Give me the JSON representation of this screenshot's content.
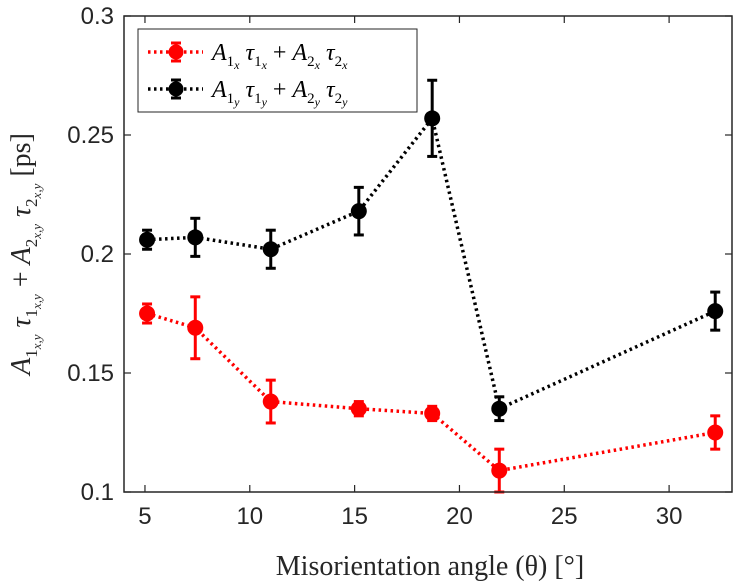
{
  "chart_data": {
    "type": "line",
    "title": "",
    "xlabel": "Misorientation angle (θ) [°]",
    "ylabel": "A_{1x,y} τ_{1x,y} + A_{2x,y} τ_{2x,y} [ps]",
    "xlim": [
      4,
      33
    ],
    "ylim": [
      0.1,
      0.3
    ],
    "xticks": [
      5,
      10,
      15,
      20,
      25,
      30
    ],
    "yticks": [
      0.1,
      0.15,
      0.2,
      0.25,
      0.3
    ],
    "xtick_labels": [
      "5",
      "10",
      "15",
      "20",
      "25",
      "30"
    ],
    "ytick_labels": [
      "0.1",
      "0.15",
      "0.2",
      "0.25",
      "0.3"
    ],
    "grid": false,
    "legend_position": "top-left",
    "x": [
      5.1,
      7.4,
      11.0,
      15.2,
      18.7,
      21.9,
      32.2
    ],
    "series": [
      {
        "name": "A1x τ1x + A2x τ2x",
        "color": "#ff0000",
        "values": [
          0.175,
          0.169,
          0.138,
          0.135,
          0.133,
          0.109,
          0.125
        ],
        "errors": [
          0.004,
          0.013,
          0.009,
          0.003,
          0.003,
          0.009,
          0.007
        ]
      },
      {
        "name": "A1y τ1y + A2y τ2y",
        "color": "#000000",
        "values": [
          0.206,
          0.207,
          0.202,
          0.218,
          0.257,
          0.135,
          0.176
        ],
        "errors": [
          0.004,
          0.008,
          0.008,
          0.01,
          0.016,
          0.005,
          0.008
        ]
      }
    ]
  }
}
